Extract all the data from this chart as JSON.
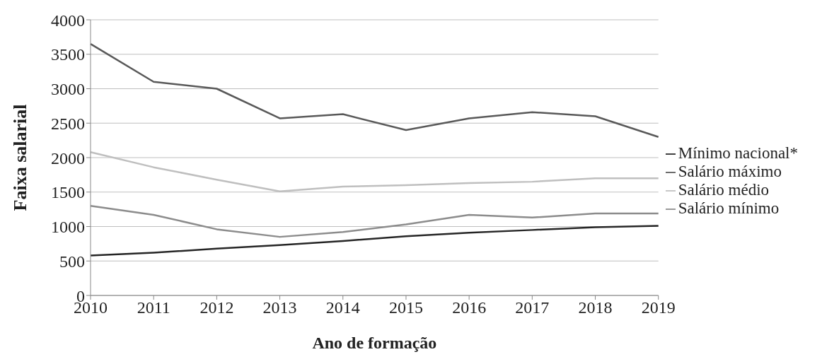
{
  "chart_data": {
    "type": "line",
    "xlabel": "Ano de formação",
    "ylabel": "Faixa salarial",
    "categories": [
      "2010",
      "2011",
      "2012",
      "2013",
      "2014",
      "2015",
      "2016",
      "2017",
      "2018",
      "2019"
    ],
    "series": [
      {
        "name": "Salário máximo",
        "color": "#595959",
        "values": [
          3650,
          3100,
          3000,
          2570,
          2630,
          2400,
          2570,
          2660,
          2600,
          2300
        ]
      },
      {
        "name": "Salário médio",
        "color": "#bfbfbf",
        "values": [
          2080,
          1860,
          1680,
          1510,
          1580,
          1600,
          1630,
          1650,
          1700,
          1700
        ]
      },
      {
        "name": "Salário mínimo",
        "color": "#8c8c8c",
        "values": [
          1300,
          1170,
          960,
          850,
          920,
          1030,
          1170,
          1130,
          1190,
          1190
        ]
      },
      {
        "name": "Mínimo nacional*",
        "color": "#262626",
        "values": [
          580,
          620,
          680,
          730,
          790,
          860,
          910,
          950,
          990,
          1010
        ]
      }
    ],
    "ylim": [
      0,
      4000
    ],
    "yticks": [
      0,
      500,
      1000,
      1500,
      2000,
      2500,
      3000,
      3500,
      4000
    ],
    "grid": "y",
    "legend": "right",
    "marker": "none",
    "line_style": "solid"
  }
}
